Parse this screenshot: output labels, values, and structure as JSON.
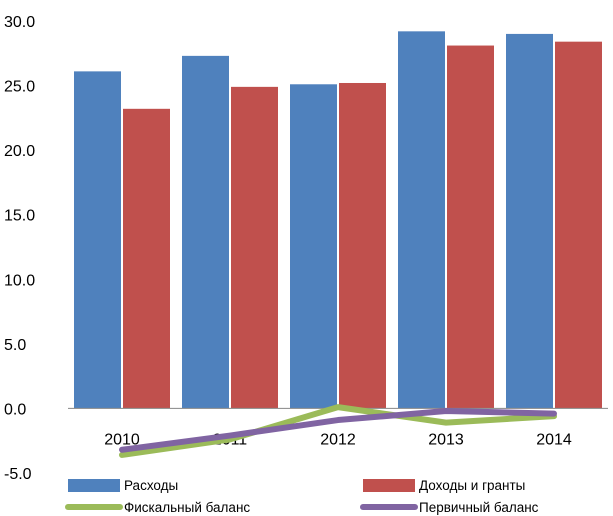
{
  "chart_data": {
    "type": "bar",
    "categories": [
      "2010",
      "2011",
      "2012",
      "2013",
      "2014"
    ],
    "ylim": [
      -5,
      30
    ],
    "yticks": [
      "-5.0",
      "0.0",
      "5.0",
      "10.0",
      "15.0",
      "20.0",
      "25.0",
      "30.0"
    ],
    "series": [
      {
        "name": "Расходы",
        "kind": "bar",
        "color": "#4F81BD",
        "values": [
          26.1,
          27.3,
          25.1,
          29.2,
          29.0
        ]
      },
      {
        "name": "Доходы и гранты",
        "kind": "bar",
        "color": "#C0504D",
        "values": [
          23.2,
          24.9,
          25.2,
          28.1,
          28.4
        ]
      },
      {
        "name": "Фискальный баланс",
        "kind": "line",
        "color": "#9BBB59",
        "values": [
          -3.6,
          -2.4,
          0.1,
          -1.1,
          -0.6
        ]
      },
      {
        "name": "Первичный баланс",
        "kind": "line",
        "color": "#8064A2",
        "values": [
          -3.2,
          -2.1,
          -0.9,
          -0.2,
          -0.4
        ]
      }
    ],
    "legend_position": "bottom"
  }
}
